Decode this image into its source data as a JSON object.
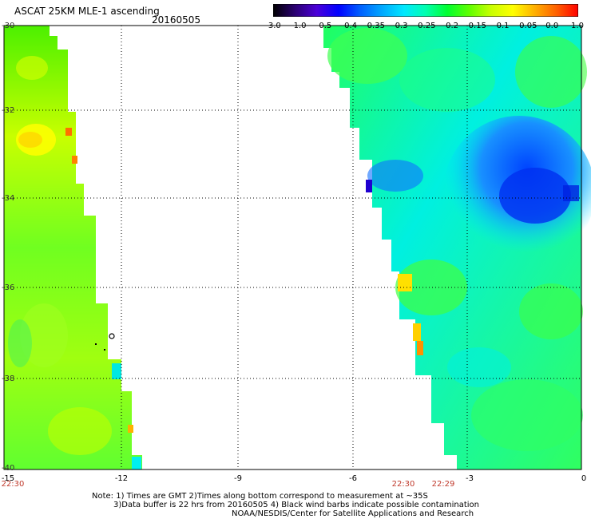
{
  "header": {
    "title": "ASCAT 25KM MLE-1 ascending",
    "date": "20160505"
  },
  "colorbar": {
    "labels": [
      "-3.0",
      "-1.0",
      "-0.5",
      "-0.4",
      "-0.35",
      "-0.3",
      "-0.25",
      "-0.2",
      "-0.15",
      "-0.1",
      "-0.05",
      "0.0",
      "1.0"
    ],
    "colors": [
      "#000000",
      "#2a0070",
      "#4b00d8",
      "#0000ff",
      "#0060ff",
      "#00a8ff",
      "#00e8ff",
      "#00ffb0",
      "#00ff30",
      "#60ff00",
      "#c8ff00",
      "#ffff00",
      "#ffb000",
      "#ff6000",
      "#ff0000"
    ]
  },
  "axes": {
    "lat_labels": [
      "-30",
      "-32",
      "-34",
      "-36",
      "-38",
      "-40"
    ],
    "lon_labels": [
      "-15",
      "-12",
      "-9",
      "-6",
      "-3",
      "0"
    ]
  },
  "times": [
    "22:30",
    "22:30",
    "22:29"
  ],
  "notes": [
    "Note: 1) Times are GMT 2)Times along bottom correspond to measurement at ~35S",
    "3)Data buffer is 22 hrs from 20160505 4) Black wind barbs indicate possible contamination",
    "NOAA/NESDIS/Center for Satellite Applications and Research"
  ],
  "colors": {
    "background": "#ffffff",
    "time_label": "#c0392b",
    "grid": "#000000"
  }
}
